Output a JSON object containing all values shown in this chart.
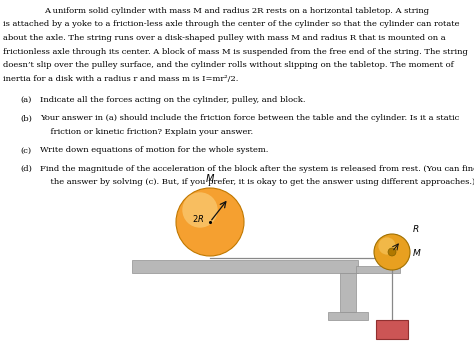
{
  "bg_color": "#ffffff",
  "text_color": "#000000",
  "para_text": "A uniform solid cylinder with mass M and radius 2R rests on a horizontal tabletop. A string\nis attached by a yoke to a friction-less axle through the center of the cylinder so that the cylinder can rotate\nabout the axle. The string runs over a disk-shaped pulley with mass M and radius R that is mounted on a\nfrictionless axle through its center. A block of mass M is suspended from the free end of the string. The string\ndoesn’t slip over the pulley surface, and the cylinder rolls without slipping on the tabletop. The moment of\ninertia for a disk with a radius r and mass m is I=mr²/2.",
  "q_a_label": "(a)",
  "q_a_text": "Indicate all the forces acting on the cylinder, pulley, and block.",
  "q_b_label": "(b)",
  "q_b_text": "Your answer in (a) should include the friction force between the table and the cylinder. Is it a static\n    friction or kinetic friction? Explain your answer.",
  "q_c_label": "(c)",
  "q_c_text": "Write down equations of motion for the whole system.",
  "q_d_label": "(d)",
  "q_d_text": "Find the magnitude of the acceleration of the block after the system is released from rest. (You can find\n    the answer by solving (c). But, if you prefer, it is okay to get the answer using different approaches.)",
  "cyl_color": "#f5a030",
  "cyl_highlight": "#fbd888",
  "pulley_color": "#e8a020",
  "pulley_highlight": "#fbd070",
  "table_color": "#b8b8b8",
  "support_color": "#b8b8b8",
  "block_color": "#cc5555",
  "string_color": "#888888",
  "arrow_color": "#111111",
  "label_italic": true,
  "font_size_text": 6.0,
  "font_size_label": 6.5
}
